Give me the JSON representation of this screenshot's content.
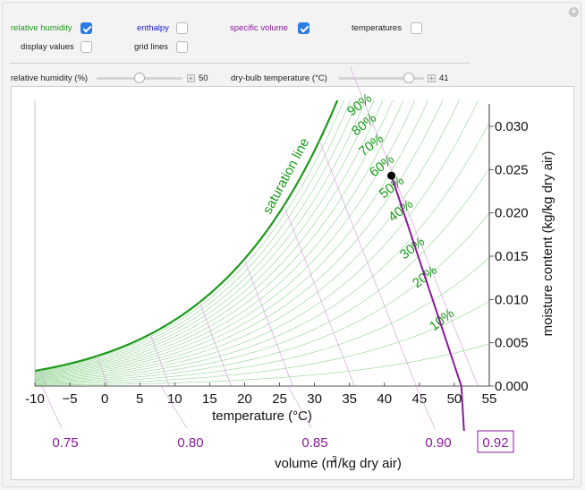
{
  "controls": {
    "relative_humidity": {
      "label": "relative humidity",
      "checked": true,
      "color": "#1a9a1a"
    },
    "enthalpy": {
      "label": "enthalpy",
      "checked": false,
      "color": "#1a1ad2"
    },
    "specific_volume": {
      "label": "specific volume",
      "checked": true,
      "color": "#8a1a9a"
    },
    "temperatures": {
      "label": "temperatures",
      "checked": false
    },
    "display_values": {
      "label": "display values",
      "checked": false
    },
    "grid_lines": {
      "label": "grid lines",
      "checked": false
    },
    "rh_slider": {
      "label": "relative humidity (%)",
      "value": "50",
      "fraction": 0.5
    },
    "db_slider": {
      "label": "dry-bulb temperature (°C)",
      "value": "41",
      "fraction": 0.82
    }
  },
  "chart_data": {
    "type": "line",
    "title": "",
    "xlabel": "temperature (°C)",
    "ylabel": "moisture content (kg/kg dry air)",
    "secondary_xlabel": "volume (m³/kg dry air)",
    "xlim": [
      -10,
      55
    ],
    "ylim": [
      0,
      0.033
    ],
    "x_ticks": [
      "-10",
      "−5",
      "0",
      "5",
      "10",
      "15",
      "20",
      "25",
      "30",
      "35",
      "40",
      "45",
      "50",
      "55"
    ],
    "y_ticks": [
      "0.000",
      "0.005",
      "0.010",
      "0.015",
      "0.020",
      "0.025",
      "0.030"
    ],
    "volume_ticks": [
      "0.75",
      "0.80",
      "0.85",
      "0.90"
    ],
    "saturation_label": "saturation line",
    "rh_curves": [
      "10%",
      "20%",
      "30%",
      "40%",
      "50%",
      "60%",
      "70%",
      "80%",
      "90%"
    ],
    "state_point": {
      "temperature": 41,
      "rh": 50,
      "moisture": 0.0243
    },
    "state_volume": {
      "value": "0.92",
      "temperature_at_axis": 51
    }
  }
}
